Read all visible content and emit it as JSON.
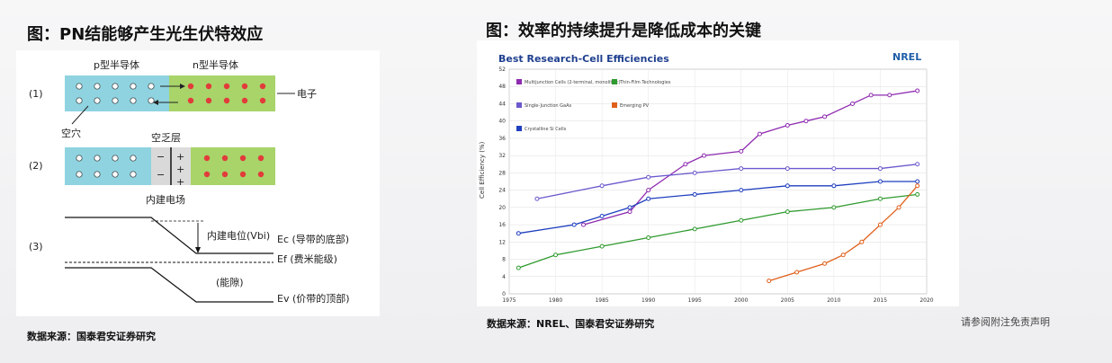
{
  "left": {
    "title": "图：PN结能够产生光生伏特效应",
    "source": "数据来源：国泰君安证券研究",
    "diagram": {
      "p_label": "p型半导体",
      "n_label": "n型半导体",
      "row1": "(1)",
      "row2": "(2)",
      "row3": "(3)",
      "electron_label": "电子",
      "hole_label": "空穴",
      "depletion_label": "空乏层",
      "field_label": "内建电场",
      "potential_label": "内建电位(Vbi)",
      "ec_label": "Ec (导带的底部)",
      "ef_label": "Ef (费米能级)",
      "gap_label": "(能隙)",
      "ev_label": "Ev (价带的顶部)",
      "minus_sign": "−",
      "plus_sign": "+",
      "colors": {
        "p_region": "#8fd3e0",
        "n_region": "#a8d46a",
        "electron": "#e23b3b",
        "hole": "#ffffff"
      }
    }
  },
  "right": {
    "title": "图：效率的持续提升是降低成本的关键",
    "source": "数据来源：NREL、国泰君安证券研究",
    "chart_data": {
      "type": "line",
      "title": "Best Research-Cell Efficiencies",
      "logo": "NREL",
      "ylabel": "Cell Efficiency (%)",
      "xlabel": "",
      "xlim": [
        1975,
        2020
      ],
      "ylim": [
        0,
        52
      ],
      "x_ticks": [
        "1975",
        "1980",
        "1985",
        "1990",
        "1995",
        "2000",
        "2005",
        "2010",
        "2015",
        "2020"
      ],
      "y_ticks": [
        "0",
        "4",
        "8",
        "12",
        "16",
        "20",
        "24",
        "28",
        "32",
        "36",
        "40",
        "44",
        "48",
        "52"
      ],
      "legend_groups": [
        "Multijunction Cells (2-terminal, monolithic)",
        "Single-Junction GaAs",
        "Crystalline Si Cells",
        "Thin-Film Technologies",
        "Emerging PV"
      ],
      "series": [
        {
          "name": "Multijunction Cells (2-terminal, monolithic)",
          "color": "#8e2bb0",
          "x": [
            1983,
            1988,
            1990,
            1994,
            1996,
            2000,
            2002,
            2005,
            2007,
            2009,
            2012,
            2014,
            2016,
            2019
          ],
          "y": [
            16,
            19,
            24,
            30,
            32,
            33,
            37,
            39,
            40,
            41,
            44,
            46,
            46,
            47
          ]
        },
        {
          "name": "Single-Junction GaAs",
          "color": "#6a5acd",
          "x": [
            1978,
            1985,
            1990,
            1995,
            2000,
            2005,
            2010,
            2015,
            2019
          ],
          "y": [
            22,
            25,
            27,
            28,
            29,
            29,
            29,
            29,
            30
          ]
        },
        {
          "name": "Crystalline Si Cells",
          "color": "#1f3fbf",
          "x": [
            1976,
            1982,
            1985,
            1988,
            1990,
            1995,
            2000,
            2005,
            2010,
            2015,
            2019
          ],
          "y": [
            14,
            16,
            18,
            20,
            22,
            23,
            24,
            25,
            25,
            26,
            26
          ]
        },
        {
          "name": "Thin-Film Technologies",
          "color": "#2f9a2f",
          "x": [
            1976,
            1980,
            1985,
            1990,
            1995,
            2000,
            2005,
            2010,
            2015,
            2019
          ],
          "y": [
            6,
            9,
            11,
            13,
            15,
            17,
            19,
            20,
            22,
            23
          ]
        },
        {
          "name": "Emerging PV",
          "color": "#e0601b",
          "x": [
            2003,
            2006,
            2009,
            2011,
            2013,
            2015,
            2017,
            2019
          ],
          "y": [
            3,
            5,
            7,
            9,
            12,
            16,
            20,
            25
          ]
        }
      ]
    }
  },
  "disclaimer": "请参阅附注免责声明"
}
